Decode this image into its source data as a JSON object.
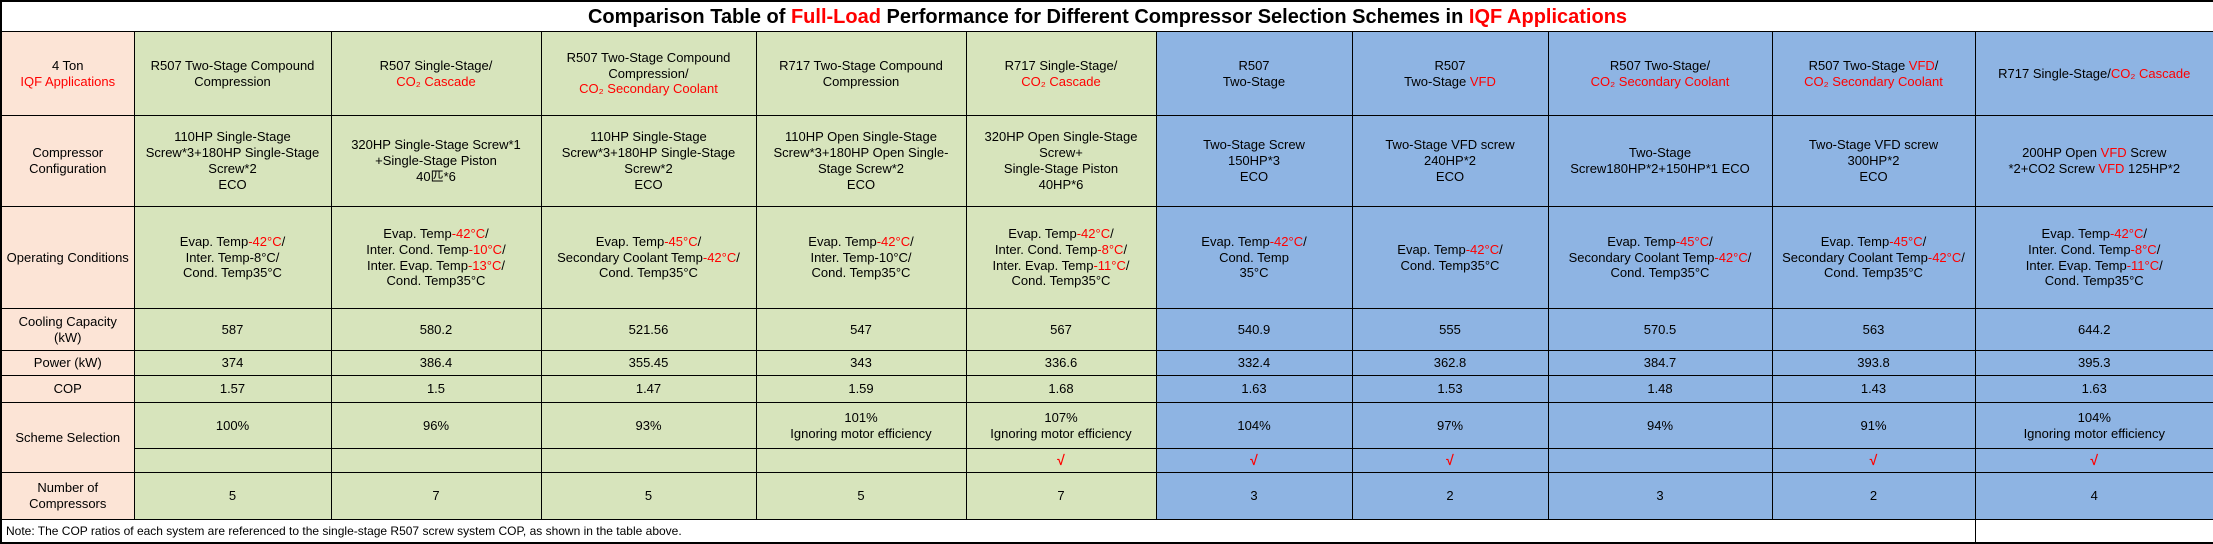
{
  "colors": {
    "red": "#ff0000",
    "peach": "#fce4d6",
    "green": "#d7e4bc",
    "blue": "#8eb4e3",
    "white": "#ffffff",
    "border": "#000000"
  },
  "title": {
    "segments": [
      {
        "t": "Comparison Table of "
      },
      {
        "t": "Full-Load",
        "c": "red"
      },
      {
        "t": " Performance for Different Compressor Selection Schemes in "
      },
      {
        "t": "IQF Applications",
        "c": "red"
      }
    ]
  },
  "columns": [
    {
      "id": "label-column",
      "group": "peach",
      "header": [
        {
          "t": "4 Ton"
        },
        {
          "br": true
        },
        {
          "t": "IQF Applications",
          "c": "red"
        }
      ]
    },
    {
      "id": "scheme-1",
      "group": "green",
      "header": [
        {
          "t": "R507 Two-Stage Compound Compression"
        }
      ]
    },
    {
      "id": "scheme-2",
      "group": "green",
      "header": [
        {
          "t": "R507 Single-Stage/"
        },
        {
          "br": true
        },
        {
          "t": "CO₂ Cascade",
          "c": "red"
        }
      ]
    },
    {
      "id": "scheme-3",
      "group": "green",
      "header": [
        {
          "t": "R507 Two-Stage Compound Compression/"
        },
        {
          "br": true
        },
        {
          "t": "CO₂ Secondary Coolant",
          "c": "red"
        }
      ]
    },
    {
      "id": "scheme-4",
      "group": "green",
      "header": [
        {
          "t": "R717 Two-Stage Compound Compression"
        }
      ]
    },
    {
      "id": "scheme-5",
      "group": "green",
      "header": [
        {
          "t": "R717 Single-Stage/"
        },
        {
          "br": true
        },
        {
          "t": "CO₂ Cascade",
          "c": "red"
        }
      ]
    },
    {
      "id": "scheme-6",
      "group": "blue",
      "header": [
        {
          "t": "R507"
        },
        {
          "br": true
        },
        {
          "t": "Two-Stage"
        }
      ]
    },
    {
      "id": "scheme-7",
      "group": "blue",
      "header": [
        {
          "t": "R507"
        },
        {
          "br": true
        },
        {
          "t": "Two-Stage "
        },
        {
          "t": "VFD",
          "c": "red"
        }
      ]
    },
    {
      "id": "scheme-8",
      "group": "blue",
      "header": [
        {
          "t": "R507 Two-Stage/"
        },
        {
          "br": true
        },
        {
          "t": "CO₂ Secondary Coolant",
          "c": "red"
        }
      ]
    },
    {
      "id": "scheme-9",
      "group": "blue",
      "header": [
        {
          "t": "R507 Two-Stage "
        },
        {
          "t": "VFD",
          "c": "red"
        },
        {
          "t": "/"
        },
        {
          "br": true
        },
        {
          "t": "CO₂ Secondary Coolant",
          "c": "red"
        }
      ]
    },
    {
      "id": "scheme-10",
      "group": "blue",
      "header": [
        {
          "t": "R717 Single-Stage/"
        },
        {
          "t": "CO₂ Cascade",
          "c": "red"
        }
      ]
    }
  ],
  "rows": {
    "config": {
      "label": "Compressor Configuration",
      "cells": [
        [
          {
            "t": "110HP Single-Stage Screw*3+180HP Single-Stage Screw*2"
          },
          {
            "br": true
          },
          {
            "t": "ECO"
          }
        ],
        [
          {
            "t": "320HP Single-Stage Screw*1"
          },
          {
            "br": true
          },
          {
            "t": "+Single-Stage Piston"
          },
          {
            "br": true
          },
          {
            "t": "40匹*6"
          }
        ],
        [
          {
            "t": "110HP Single-Stage Screw*3+180HP Single-Stage Screw*2"
          },
          {
            "br": true
          },
          {
            "t": "ECO"
          }
        ],
        [
          {
            "t": "110HP Open Single-Stage Screw*3+180HP Open Single-Stage Screw*2"
          },
          {
            "br": true
          },
          {
            "t": "ECO"
          }
        ],
        [
          {
            "t": "320HP Open Single-Stage Screw+"
          },
          {
            "br": true
          },
          {
            "t": "Single-Stage Piston"
          },
          {
            "br": true
          },
          {
            "t": "40HP*6"
          }
        ],
        [
          {
            "t": "Two-Stage Screw"
          },
          {
            "br": true
          },
          {
            "t": "150HP*3"
          },
          {
            "br": true
          },
          {
            "t": "ECO"
          }
        ],
        [
          {
            "t": "Two-Stage VFD screw"
          },
          {
            "br": true
          },
          {
            "t": "240HP*2"
          },
          {
            "br": true
          },
          {
            "t": "ECO"
          }
        ],
        [
          {
            "t": "Two-Stage"
          },
          {
            "br": true
          },
          {
            "t": "Screw180HP*2+150HP*1 ECO"
          }
        ],
        [
          {
            "t": "Two-Stage VFD screw"
          },
          {
            "br": true
          },
          {
            "t": "300HP*2"
          },
          {
            "br": true
          },
          {
            "t": "ECO"
          }
        ],
        [
          {
            "t": "200HP Open "
          },
          {
            "t": "VFD",
            "c": "red"
          },
          {
            "t": " Screw"
          },
          {
            "br": true
          },
          {
            "t": "*2+CO2 Screw "
          },
          {
            "t": "VFD",
            "c": "red"
          },
          {
            "t": " 125HP*2"
          }
        ]
      ]
    },
    "operating": {
      "label": "Operating Conditions",
      "cells": [
        [
          {
            "t": "Evap. Temp"
          },
          {
            "t": "-42°C",
            "c": "red"
          },
          {
            "t": "/"
          },
          {
            "br": true
          },
          {
            "t": "Inter. Temp-8°C/"
          },
          {
            "br": true
          },
          {
            "t": "Cond. Temp35°C"
          }
        ],
        [
          {
            "t": "Evap. Temp"
          },
          {
            "t": "-42°C",
            "c": "red"
          },
          {
            "t": "/"
          },
          {
            "br": true
          },
          {
            "t": "Inter. Cond. Temp"
          },
          {
            "t": "-10°C",
            "c": "red"
          },
          {
            "t": "/"
          },
          {
            "br": true
          },
          {
            "t": "Inter. Evap. Temp"
          },
          {
            "t": "-13°C",
            "c": "red"
          },
          {
            "t": "/"
          },
          {
            "br": true
          },
          {
            "t": "Cond. Temp35°C"
          }
        ],
        [
          {
            "t": "Evap. Temp"
          },
          {
            "t": "-45°C",
            "c": "red"
          },
          {
            "t": "/"
          },
          {
            "br": true
          },
          {
            "t": "Secondary Coolant Temp"
          },
          {
            "t": "-42°C",
            "c": "red"
          },
          {
            "t": "/"
          },
          {
            "br": true
          },
          {
            "t": "Cond. Temp35°C"
          }
        ],
        [
          {
            "t": "Evap. Temp"
          },
          {
            "t": "-42°C",
            "c": "red"
          },
          {
            "t": "/"
          },
          {
            "br": true
          },
          {
            "t": "Inter. Temp-10°C/"
          },
          {
            "br": true
          },
          {
            "t": "Cond. Temp35°C"
          }
        ],
        [
          {
            "t": "Evap. Temp"
          },
          {
            "t": "-42°C",
            "c": "red"
          },
          {
            "t": "/"
          },
          {
            "br": true
          },
          {
            "t": "Inter. Cond. Temp"
          },
          {
            "t": "-8°C",
            "c": "red"
          },
          {
            "t": "/"
          },
          {
            "br": true
          },
          {
            "t": "Inter. Evap. Temp"
          },
          {
            "t": "-11°C",
            "c": "red"
          },
          {
            "t": "/"
          },
          {
            "br": true
          },
          {
            "t": "Cond. Temp35°C"
          }
        ],
        [
          {
            "t": "Evap. Temp"
          },
          {
            "t": "-42°C",
            "c": "red"
          },
          {
            "t": "/"
          },
          {
            "br": true
          },
          {
            "t": "Cond. Temp"
          },
          {
            "br": true
          },
          {
            "t": "35°C"
          }
        ],
        [
          {
            "t": "Evap. Temp"
          },
          {
            "t": "-42°C",
            "c": "red"
          },
          {
            "t": "/"
          },
          {
            "br": true
          },
          {
            "t": "Cond. Temp35°C"
          }
        ],
        [
          {
            "t": "Evap. Temp"
          },
          {
            "t": "-45°C",
            "c": "red"
          },
          {
            "t": "/"
          },
          {
            "br": true
          },
          {
            "t": "Secondary Coolant Temp"
          },
          {
            "t": "-42°C",
            "c": "red"
          },
          {
            "t": "/"
          },
          {
            "br": true
          },
          {
            "t": "Cond. Temp35°C"
          }
        ],
        [
          {
            "t": "Evap. Temp"
          },
          {
            "t": "-45°C",
            "c": "red"
          },
          {
            "t": "/"
          },
          {
            "br": true
          },
          {
            "t": "Secondary Coolant Temp"
          },
          {
            "t": "-42°C",
            "c": "red"
          },
          {
            "t": "/"
          },
          {
            "br": true
          },
          {
            "t": "Cond. Temp35°C"
          }
        ],
        [
          {
            "t": "Evap. Temp"
          },
          {
            "t": "-42°C",
            "c": "red"
          },
          {
            "t": "/"
          },
          {
            "br": true
          },
          {
            "t": "Inter. Cond. Temp"
          },
          {
            "t": "-8°C",
            "c": "red"
          },
          {
            "t": "/"
          },
          {
            "br": true
          },
          {
            "t": "Inter. Evap. Temp"
          },
          {
            "t": "-11°C",
            "c": "red"
          },
          {
            "t": "/"
          },
          {
            "br": true
          },
          {
            "t": "Cond. Temp35°C"
          }
        ]
      ]
    },
    "cooling": {
      "label": "Cooling Capacity (kW)",
      "values": [
        587,
        580.2,
        521.56,
        547,
        567,
        540.9,
        555,
        570.5,
        563,
        644.2
      ]
    },
    "power": {
      "label": "Power (kW)",
      "values": [
        374,
        386.4,
        355.45,
        343,
        336.6,
        332.4,
        362.8,
        384.7,
        393.8,
        395.3
      ]
    },
    "cop": {
      "label": "COP",
      "values": [
        1.57,
        1.5,
        1.47,
        1.59,
        1.68,
        1.63,
        1.53,
        1.48,
        1.43,
        1.63
      ]
    },
    "scheme": {
      "label": "Scheme Selection",
      "cells": [
        [
          {
            "t": "100%"
          }
        ],
        [
          {
            "t": "96%"
          }
        ],
        [
          {
            "t": "93%"
          }
        ],
        [
          {
            "t": "101%"
          },
          {
            "br": true
          },
          {
            "t": "Ignoring motor efficiency"
          }
        ],
        [
          {
            "t": "107%"
          },
          {
            "br": true
          },
          {
            "t": "Ignoring motor efficiency"
          }
        ],
        [
          {
            "t": "104%"
          }
        ],
        [
          {
            "t": "97%"
          }
        ],
        [
          {
            "t": "94%"
          }
        ],
        [
          {
            "t": "91%"
          }
        ],
        [
          {
            "t": "104%"
          },
          {
            "br": true
          },
          {
            "t": "Ignoring motor efficiency"
          }
        ]
      ],
      "checks": [
        "",
        "",
        "",
        "",
        "√",
        "√",
        "√",
        "",
        "√",
        "√"
      ]
    },
    "compressors": {
      "label": "Number of Compressors",
      "values": [
        5,
        7,
        5,
        5,
        7,
        3,
        2,
        3,
        2,
        4
      ]
    }
  },
  "note": "Note: The COP ratios of each system are referenced to the single-stage R507 screw system COP, as shown in the table above."
}
